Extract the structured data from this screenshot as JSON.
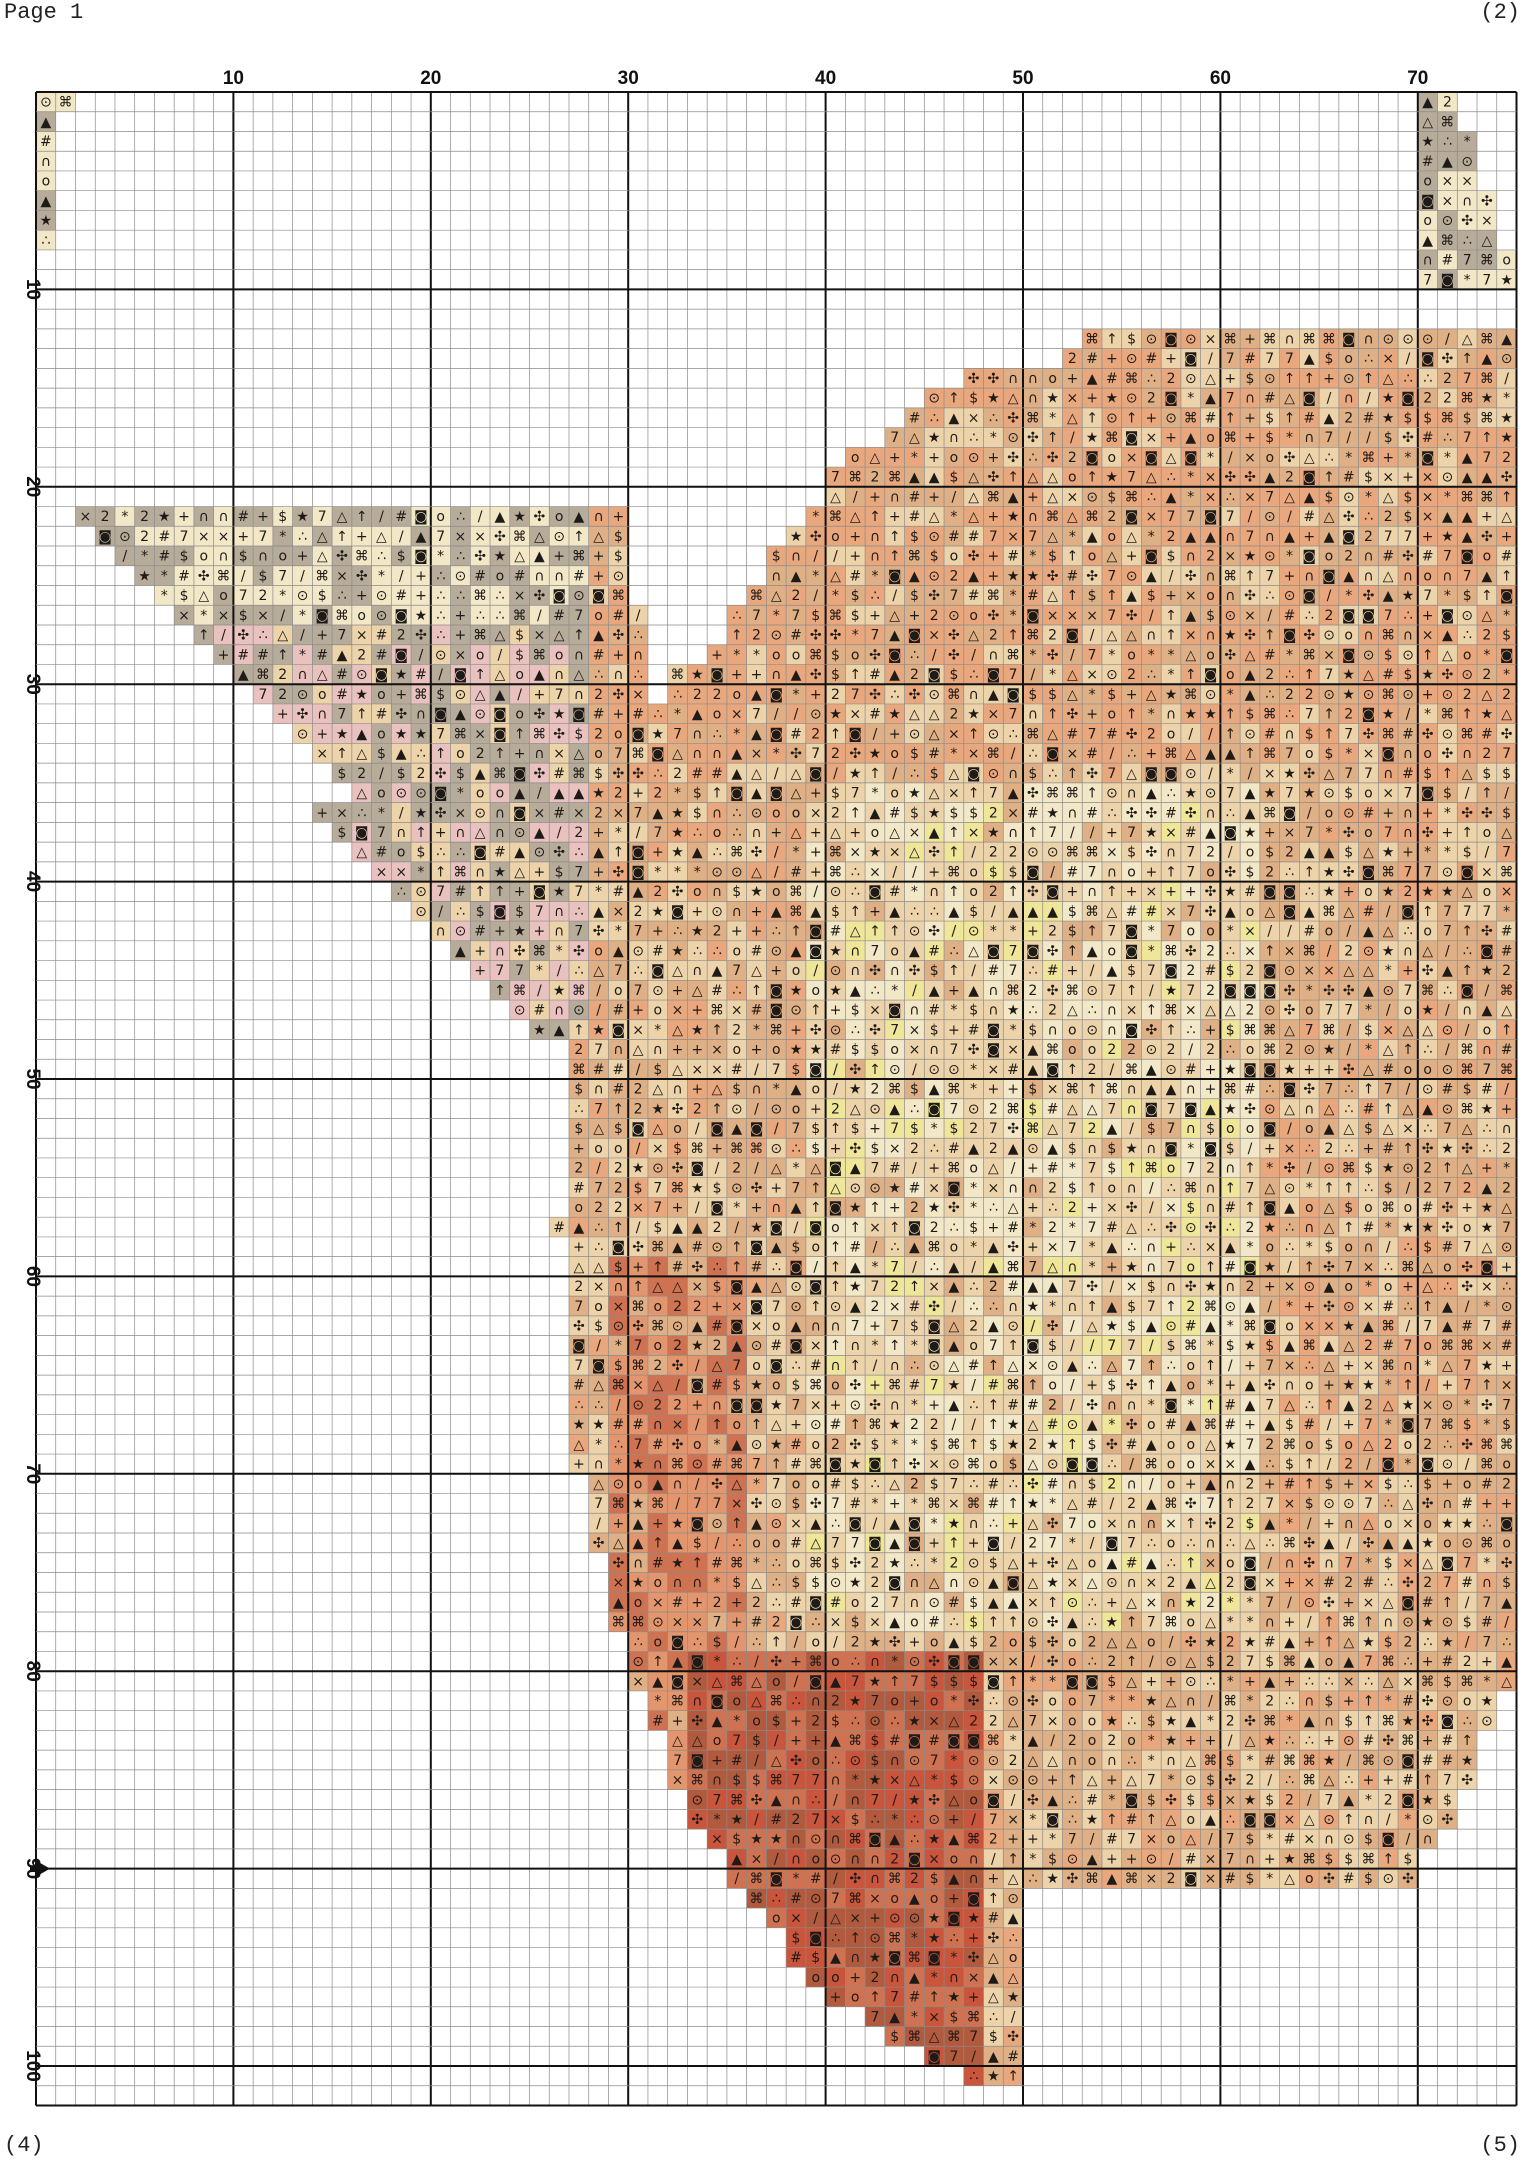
{
  "header": {
    "page_label": "Page 1",
    "right_ref": "(2)"
  },
  "footer": {
    "left_ref": "(4)",
    "right_ref": "(5)"
  },
  "grid": {
    "columns": 75,
    "rows": 102,
    "major_every": 10,
    "column_labels": [
      "10",
      "20",
      "30",
      "40",
      "50",
      "60",
      "70"
    ],
    "row_labels": [
      "10",
      "20",
      "30",
      "40",
      "50",
      "60",
      "70",
      "80",
      "90",
      "100"
    ],
    "center_marker_row": 90,
    "line_color": "#8a8a8a",
    "major_line_color": "#111111"
  },
  "palette": {
    "cream": "#f2e7c6",
    "light_tan": "#ecd3a9",
    "tan": "#dfb085",
    "peach": "#e8a77d",
    "salmon": "#e3966e",
    "rust": "#cf7251",
    "deep_rust": "#b25a3e",
    "red_brown": "#c8553c",
    "grey": "#b7ab9a",
    "pink": "#e9c2c0",
    "yellow": "#efe69a"
  },
  "symbols": [
    "+",
    "★",
    "↑",
    "✣",
    "⌘",
    "×",
    "o",
    "7",
    "∴",
    "∩",
    "▲",
    "$",
    "△",
    "#",
    "2",
    "*",
    "◙",
    "⊙",
    "/"
  ]
}
